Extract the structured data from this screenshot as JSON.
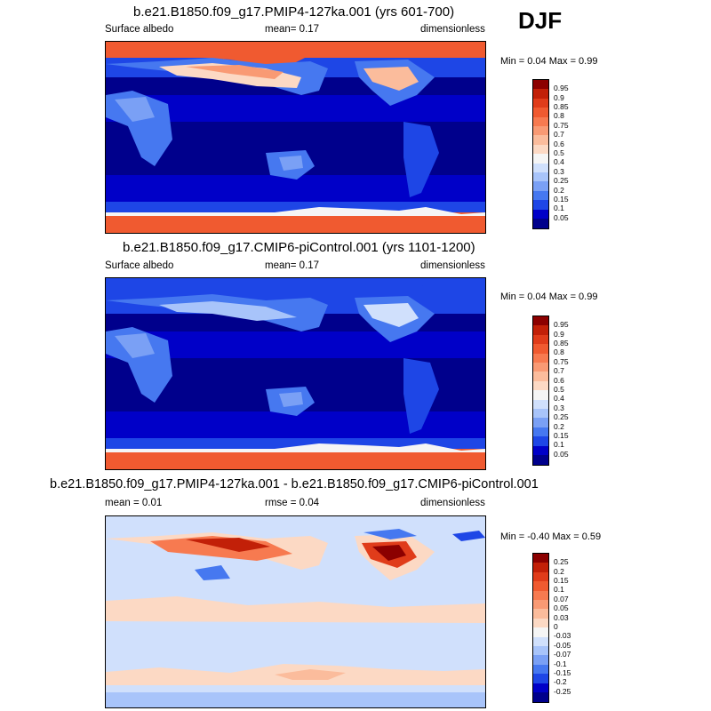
{
  "season": "DJF",
  "palette_abs": [
    "#00008c",
    "#0000c8",
    "#1e46e6",
    "#4678f0",
    "#7aa0f5",
    "#a8c4fa",
    "#d0e0fc",
    "#f5f5f5",
    "#fcd9c4",
    "#fbbc9c",
    "#f99a74",
    "#f77a50",
    "#f05a30",
    "#e03c1a",
    "#c22008",
    "#8c0000"
  ],
  "palette_diff": [
    "#00008c",
    "#0000c8",
    "#1e46e6",
    "#4678f0",
    "#7aa0f5",
    "#a8c4fa",
    "#d0e0fc",
    "#f5f5f5",
    "#fcd9c4",
    "#fbbc9c",
    "#f99a74",
    "#f77a50",
    "#f05a30",
    "#e03c1a",
    "#c22008",
    "#8c0000"
  ],
  "panels": [
    {
      "title": "b.e21.B1850.f09_g17.PMIP4-127ka.001 (yrs 601-700)",
      "left_label": "Surface albedo",
      "center_label": "mean=   0.17",
      "right_label": "dimensionless",
      "minmax": "Min =   0.04 Max =   0.99",
      "colorbar_labels": [
        "0.95",
        "0.9",
        "0.85",
        "0.8",
        "0.75",
        "0.7",
        "0.6",
        "0.5",
        "0.4",
        "0.3",
        "0.25",
        "0.2",
        "0.15",
        "0.1",
        "0.05"
      ]
    },
    {
      "title": "b.e21.B1850.f09_g17.CMIP6-piControl.001 (yrs 1101-1200)",
      "left_label": "Surface albedo",
      "center_label": "mean=   0.17",
      "right_label": "dimensionless",
      "minmax": "Min =   0.04 Max =   0.99",
      "colorbar_labels": [
        "0.95",
        "0.9",
        "0.85",
        "0.8",
        "0.75",
        "0.7",
        "0.6",
        "0.5",
        "0.4",
        "0.3",
        "0.25",
        "0.2",
        "0.15",
        "0.1",
        "0.05"
      ]
    },
    {
      "title": "b.e21.B1850.f09_g17.PMIP4-127ka.001 - b.e21.B1850.f09_g17.CMIP6-piControl.001",
      "left_label": "mean =    0.01",
      "center_label": "rmse =    0.04",
      "right_label": "dimensionless",
      "minmax": "Min =  -0.40 Max =   0.59",
      "colorbar_labels": [
        "0.25",
        "0.2",
        "0.15",
        "0.1",
        "0.07",
        "0.05",
        "0.03",
        "0",
        "-0.03",
        "-0.05",
        "-0.07",
        "-0.1",
        "-0.15",
        "-0.2",
        "-0.25"
      ]
    }
  ]
}
